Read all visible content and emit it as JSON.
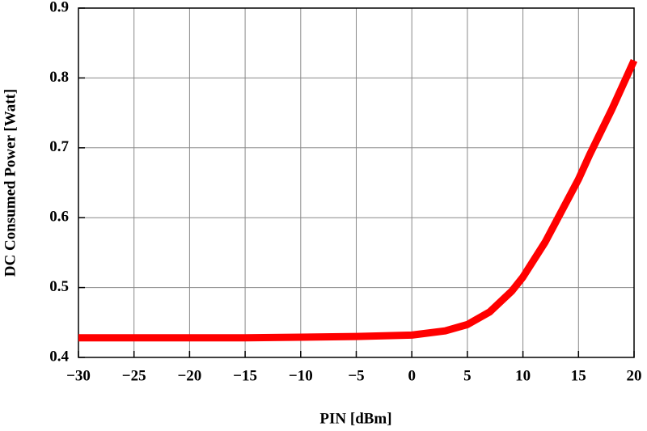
{
  "chart_data": {
    "type": "line",
    "x_label": "PIN [dBm]",
    "y_label": "DC Consumed Power [Watt]",
    "x": [
      -30,
      -25,
      -20,
      -15,
      -10,
      -5,
      0,
      3,
      5,
      7,
      9,
      10,
      12,
      14,
      15,
      16,
      18,
      20
    ],
    "series": [
      {
        "name": "DC Consumed Power",
        "color": "#ff0000",
        "values": [
          0.428,
          0.428,
          0.428,
          0.428,
          0.429,
          0.43,
          0.432,
          0.438,
          0.447,
          0.465,
          0.495,
          0.515,
          0.565,
          0.625,
          0.655,
          0.69,
          0.755,
          0.825
        ]
      }
    ],
    "xlim": [
      -30,
      20
    ],
    "ylim": [
      0.4,
      0.9
    ],
    "xticks": [
      {
        "value": -30,
        "label": "−30"
      },
      {
        "value": -25,
        "label": "−25"
      },
      {
        "value": -20,
        "label": "−20"
      },
      {
        "value": -15,
        "label": "−15"
      },
      {
        "value": -10,
        "label": "−10"
      },
      {
        "value": -5,
        "label": "−5"
      },
      0,
      5,
      10,
      15,
      20
    ],
    "yticks": [
      0.4,
      0.5,
      0.6,
      0.7,
      0.8,
      0.9
    ],
    "grid": true
  }
}
